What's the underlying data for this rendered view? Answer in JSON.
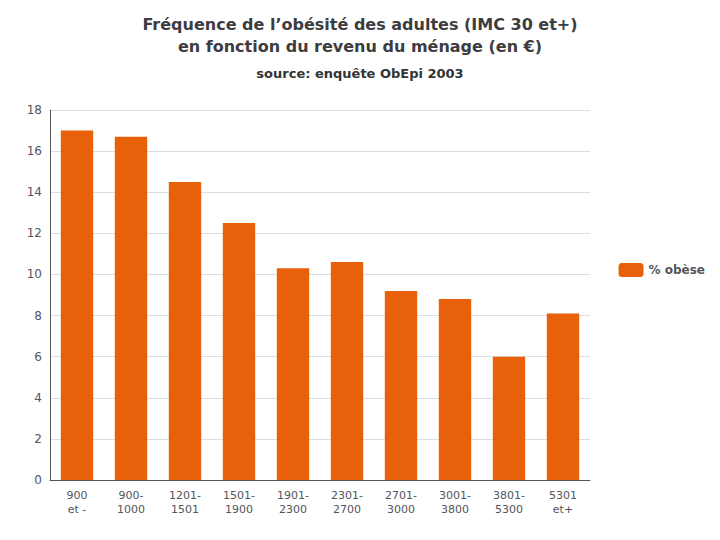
{
  "chart_data": {
    "type": "bar",
    "title": "Fréquence de l’obésité des adultes (IMC 30 et+)\nen fonction du revenu du ménage (en €)",
    "subtitle": "source: enquête ObEpi 2003",
    "categories": [
      "900\net -",
      "900-\n1000",
      "1201-\n1501",
      "1501-\n1900",
      "1901-\n2300",
      "2301-\n2700",
      "2701-\n3000",
      "3001-\n3800",
      "3801-\n5300",
      "5301\net+"
    ],
    "series": [
      {
        "name": "% obèse",
        "color": "#E8610A",
        "values": [
          17.0,
          16.7,
          14.5,
          12.5,
          10.3,
          10.6,
          9.2,
          8.8,
          6.0,
          8.1
        ]
      }
    ],
    "ylim": [
      0,
      18
    ],
    "yticks": [
      0,
      2,
      4,
      6,
      8,
      10,
      12,
      14,
      16,
      18
    ],
    "grid": true,
    "legend": "right"
  }
}
